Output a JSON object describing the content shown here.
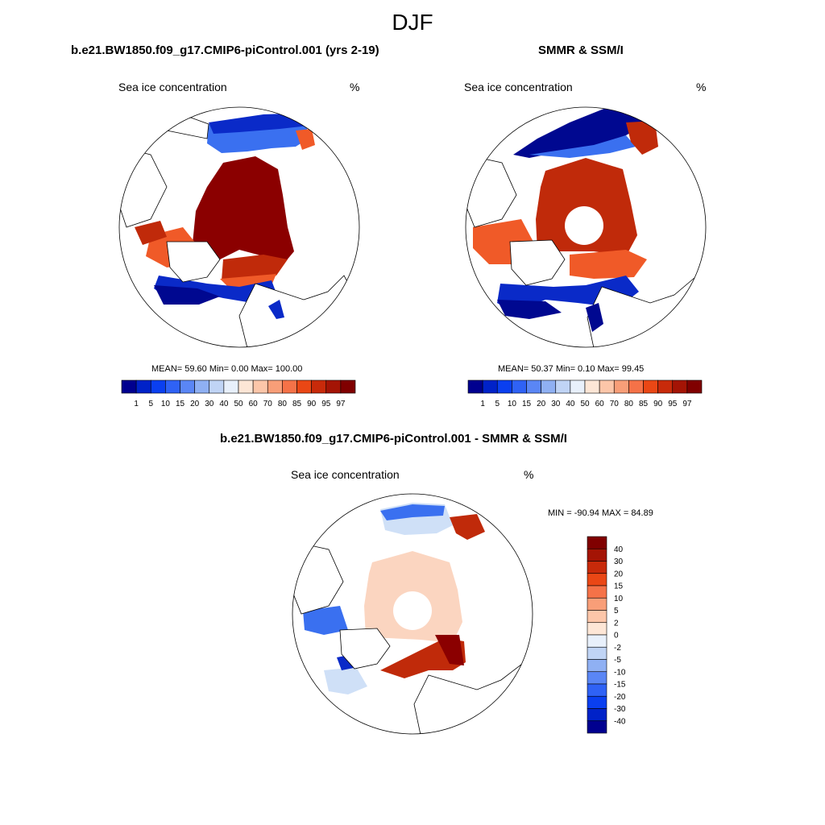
{
  "title": "DJF",
  "panels": [
    {
      "title": "b.e21.BW1850.f09_g17.CMIP6-piControl.001 (yrs 2-19)",
      "variable": "Sea ice concentration",
      "units": "%",
      "stats_text": "MEAN=  59.60  Min=   0.00  Max= 100.00"
    },
    {
      "title": "SMMR & SSM/I",
      "variable": "Sea ice concentration",
      "units": "%",
      "stats_text": "MEAN=  50.37  Min=   0.10  Max=  99.45"
    },
    {
      "title": "b.e21.BW1850.f09_g17.CMIP6-piControl.001 - SMMR & SSM/I",
      "variable": "Sea ice concentration",
      "units": "%",
      "stats_text": "MIN = -90.94 MAX =  84.89"
    }
  ],
  "colorbar_abs": {
    "labels": [
      "1",
      "5",
      "10",
      "15",
      "20",
      "30",
      "40",
      "50",
      "60",
      "70",
      "80",
      "85",
      "90",
      "95",
      "97"
    ],
    "colors": [
      "#00008f",
      "#0022c8",
      "#0a3ff0",
      "#2f62f5",
      "#5a86f5",
      "#8fb0f3",
      "#c0d4f5",
      "#e8f0fb",
      "#fde6d6",
      "#fcc6a9",
      "#f89e78",
      "#f57248",
      "#ea4715",
      "#c82a0a",
      "#a41405",
      "#800000"
    ]
  },
  "colorbar_diff": {
    "labels": [
      "40",
      "30",
      "20",
      "15",
      "10",
      "5",
      "2",
      "0",
      "-2",
      "-5",
      "-10",
      "-15",
      "-20",
      "-30",
      "-40"
    ],
    "colors": [
      "#800000",
      "#a41405",
      "#c82a0a",
      "#ea4715",
      "#f57248",
      "#f89e78",
      "#fcc6a9",
      "#fde6d6",
      "#e8f0fb",
      "#c0d4f5",
      "#8fb0f3",
      "#5a86f5",
      "#2f62f5",
      "#0a3ff0",
      "#0022c8",
      "#00008f"
    ]
  },
  "map_colors": {
    "ice_full": "#8b0000",
    "ice_high": "#c02a0a",
    "ice_mid": "#f05a28",
    "ice_low": "#fca080",
    "ocean_low": "#0a2ac8",
    "ocean_mid": "#3a70f0",
    "ocean_dark": "#000890",
    "diff_pos": "#fbd5c0",
    "diff_neg": "#cfe0f7",
    "land": "#ffffff"
  }
}
